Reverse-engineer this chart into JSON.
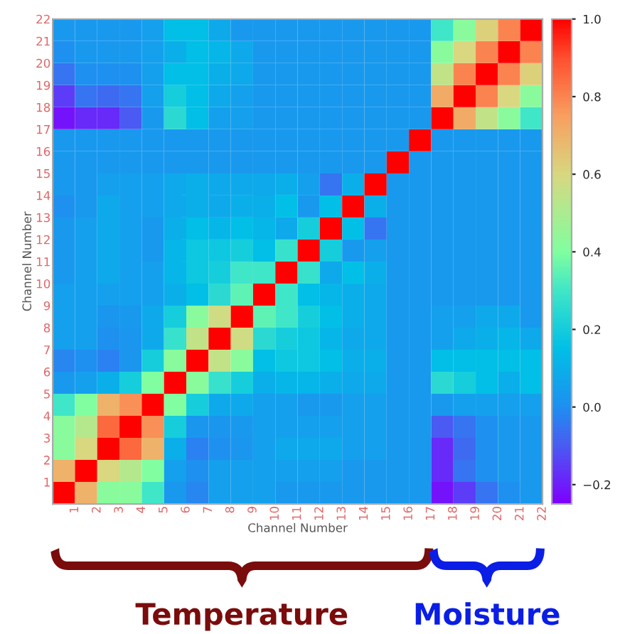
{
  "chart_data": {
    "type": "heatmap",
    "xlabel": "Channel Number",
    "ylabel": "Channel Number",
    "categories": [
      "1",
      "2",
      "3",
      "4",
      "5",
      "6",
      "7",
      "8",
      "9",
      "10",
      "11",
      "12",
      "13",
      "14",
      "15",
      "16",
      "17",
      "18",
      "19",
      "20",
      "21",
      "22"
    ],
    "y_categories": [
      "22",
      "21",
      "20",
      "19",
      "18",
      "17",
      "16",
      "15",
      "14",
      "13",
      "12",
      "11",
      "10",
      "9",
      "8",
      "7",
      "6",
      "5",
      "4",
      "3",
      "2",
      "1"
    ],
    "cells": [
      [
        0.03,
        0.03,
        0.03,
        0.03,
        0.05,
        0.15,
        0.15,
        0.08,
        0.03,
        0.03,
        0.03,
        0.03,
        0.03,
        0.03,
        0.03,
        0.03,
        0.03,
        0.3,
        0.42,
        0.62,
        0.8,
        1
      ],
      [
        0.0,
        0.03,
        0.03,
        0.03,
        0.05,
        0.1,
        0.15,
        0.12,
        0.08,
        0.03,
        0.03,
        0.03,
        0.03,
        0.03,
        0.03,
        0.03,
        0.03,
        0.42,
        0.6,
        0.8,
        1,
        0.8
      ],
      [
        -0.05,
        0.0,
        0.0,
        0.0,
        0.05,
        0.15,
        0.15,
        0.1,
        0.08,
        0.03,
        0.03,
        0.03,
        0.03,
        0.03,
        0.03,
        0.03,
        0.03,
        0.55,
        0.8,
        1,
        0.8,
        0.62
      ],
      [
        -0.15,
        -0.05,
        -0.07,
        -0.05,
        0.05,
        0.2,
        0.15,
        0.08,
        0.05,
        0.03,
        0.03,
        0.03,
        0.03,
        0.03,
        0.03,
        0.03,
        0.03,
        0.72,
        1,
        0.8,
        0.6,
        0.42
      ],
      [
        -0.22,
        -0.18,
        -0.18,
        -0.1,
        0.03,
        0.25,
        0.15,
        0.05,
        0.05,
        0.03,
        0.03,
        0.03,
        0.03,
        0.03,
        0.03,
        0.03,
        0.03,
        1,
        0.72,
        0.55,
        0.42,
        0.3
      ],
      [
        0.03,
        0.03,
        0.03,
        0.03,
        0.03,
        0.03,
        0.03,
        0.03,
        0.03,
        0.03,
        0.03,
        0.03,
        0.03,
        0.03,
        0.03,
        0.03,
        1,
        0.03,
        0.03,
        0.03,
        0.03,
        0.03
      ],
      [
        0.03,
        0.03,
        0.03,
        0.03,
        0.03,
        0.03,
        0.03,
        0.03,
        0.03,
        0.03,
        0.03,
        0.03,
        0.03,
        0.03,
        0.03,
        1,
        0.03,
        0.03,
        0.03,
        0.03,
        0.03,
        0.03
      ],
      [
        0.03,
        0.03,
        0.05,
        0.05,
        0.05,
        0.08,
        0.1,
        0.08,
        0.08,
        0.08,
        0.1,
        0.05,
        -0.05,
        0.1,
        1,
        0.03,
        0.03,
        0.03,
        0.03,
        0.03,
        0.03,
        0.03
      ],
      [
        0.0,
        0.03,
        0.08,
        0.05,
        0.05,
        0.08,
        0.1,
        0.08,
        0.1,
        0.1,
        0.15,
        0.03,
        0.15,
        1,
        0.1,
        0.03,
        0.03,
        0.03,
        0.03,
        0.03,
        0.03,
        0.03
      ],
      [
        0.03,
        0.05,
        0.08,
        0.05,
        0.03,
        0.1,
        0.15,
        0.12,
        0.15,
        0.12,
        0.08,
        0.2,
        1,
        0.15,
        -0.05,
        0.03,
        0.03,
        0.03,
        0.03,
        0.03,
        0.03,
        0.03
      ],
      [
        0.03,
        0.05,
        0.08,
        0.05,
        0.03,
        0.12,
        0.18,
        0.18,
        0.2,
        0.15,
        0.28,
        1,
        0.2,
        0.03,
        0.05,
        0.03,
        0.03,
        0.03,
        0.03,
        0.03,
        0.03,
        0.03
      ],
      [
        0.03,
        0.05,
        0.08,
        0.05,
        0.05,
        0.12,
        0.18,
        0.2,
        0.3,
        0.3,
        1,
        0.28,
        0.08,
        0.15,
        0.1,
        0.03,
        0.03,
        0.03,
        0.03,
        0.03,
        0.03,
        0.03
      ],
      [
        0.05,
        0.05,
        0.05,
        0.05,
        0.05,
        0.1,
        0.15,
        0.25,
        0.35,
        1,
        0.3,
        0.15,
        0.12,
        0.1,
        0.08,
        0.03,
        0.03,
        0.03,
        0.03,
        0.03,
        0.03,
        0.03
      ],
      [
        0.05,
        0.05,
        0.02,
        0.03,
        0.08,
        0.2,
        0.42,
        0.58,
        1,
        0.35,
        0.3,
        0.2,
        0.15,
        0.1,
        0.08,
        0.03,
        0.03,
        0.05,
        0.05,
        0.08,
        0.08,
        0.03
      ],
      [
        0.05,
        0.05,
        0.0,
        0.02,
        0.08,
        0.28,
        0.55,
        1,
        0.58,
        0.25,
        0.2,
        0.18,
        0.12,
        0.08,
        0.08,
        0.03,
        0.03,
        0.05,
        0.08,
        0.1,
        0.12,
        0.08
      ],
      [
        -0.02,
        0.0,
        -0.03,
        0.02,
        0.2,
        0.42,
        1,
        0.55,
        0.42,
        0.15,
        0.18,
        0.18,
        0.15,
        0.1,
        0.1,
        0.03,
        0.03,
        0.15,
        0.15,
        0.15,
        0.15,
        0.15
      ],
      [
        0.03,
        0.05,
        0.1,
        0.2,
        0.4,
        1,
        0.42,
        0.28,
        0.2,
        0.1,
        0.12,
        0.12,
        0.1,
        0.08,
        0.08,
        0.03,
        0.03,
        0.25,
        0.2,
        0.15,
        0.1,
        0.15
      ],
      [
        0.3,
        0.4,
        0.7,
        0.78,
        1,
        0.4,
        0.2,
        0.08,
        0.08,
        0.05,
        0.05,
        0.03,
        0.03,
        0.05,
        0.05,
        0.03,
        0.03,
        0.03,
        0.05,
        0.05,
        0.05,
        0.05
      ],
      [
        0.42,
        0.52,
        0.85,
        1,
        0.78,
        0.2,
        0.02,
        0.02,
        0.03,
        0.05,
        0.05,
        0.05,
        0.05,
        0.05,
        0.05,
        0.03,
        0.03,
        -0.1,
        -0.05,
        0.0,
        0.03,
        0.03
      ],
      [
        0.42,
        0.6,
        1,
        0.85,
        0.7,
        0.1,
        -0.03,
        0.0,
        0.02,
        0.05,
        0.08,
        0.08,
        0.08,
        0.05,
        0.05,
        0.03,
        0.03,
        -0.18,
        -0.07,
        0.0,
        0.03,
        0.03
      ],
      [
        0.7,
        1,
        0.6,
        0.52,
        0.4,
        0.05,
        0.0,
        0.05,
        0.05,
        0.05,
        0.05,
        0.05,
        0.05,
        0.03,
        0.03,
        0.03,
        0.03,
        -0.18,
        -0.05,
        0.0,
        0.03,
        0.03
      ],
      [
        1,
        0.7,
        0.42,
        0.42,
        0.3,
        0.03,
        -0.02,
        0.05,
        0.05,
        0.05,
        0.03,
        0.03,
        0.03,
        0.03,
        0.03,
        0.03,
        0.03,
        -0.22,
        -0.15,
        -0.05,
        0.0,
        0.03
      ]
    ],
    "clim": [
      -0.25,
      1.0
    ],
    "cticks": [
      {
        "value": -0.2,
        "label": "−0.2"
      },
      {
        "value": 0,
        "label": "0.0"
      },
      0.2,
      0.4,
      0.6,
      0.8,
      {
        "value": 1,
        "label": "1.0"
      }
    ],
    "annotations": [
      "Temperature",
      "Moisture"
    ]
  }
}
